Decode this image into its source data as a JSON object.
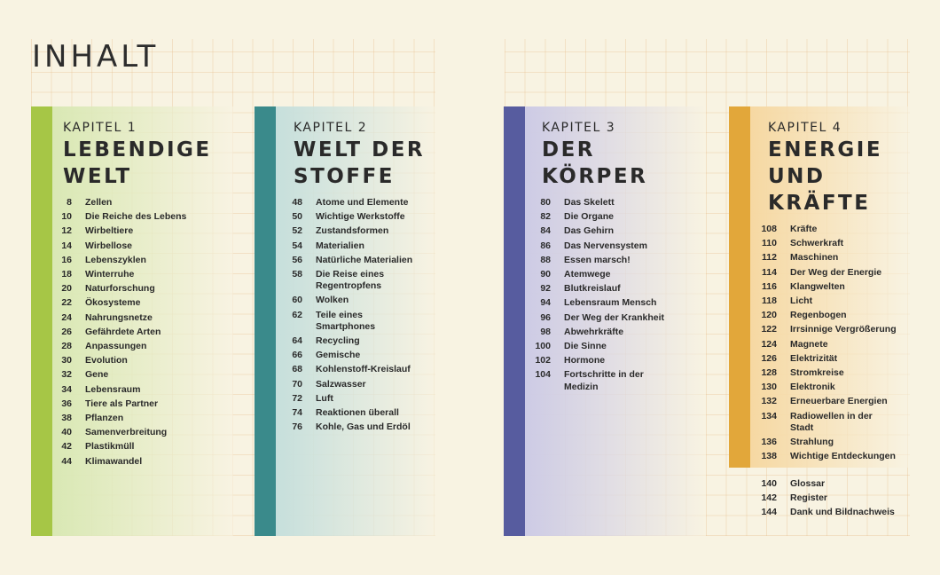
{
  "header": {
    "title": "INHALT"
  },
  "chapters": [
    {
      "label": "KAPITEL 1",
      "title": "LEBENDIGE\nWELT",
      "color": "#a6c646",
      "tint": "#d9e8b4",
      "entries": [
        {
          "page": 8,
          "title": "Zellen"
        },
        {
          "page": 10,
          "title": "Die Reiche des Lebens"
        },
        {
          "page": 12,
          "title": "Wirbeltiere"
        },
        {
          "page": 14,
          "title": "Wirbellose"
        },
        {
          "page": 16,
          "title": "Lebenszyklen"
        },
        {
          "page": 18,
          "title": "Winterruhe"
        },
        {
          "page": 20,
          "title": "Naturforschung"
        },
        {
          "page": 22,
          "title": "Ökosysteme"
        },
        {
          "page": 24,
          "title": "Nahrungsnetze"
        },
        {
          "page": 26,
          "title": "Gefährdete Arten"
        },
        {
          "page": 28,
          "title": "Anpassungen"
        },
        {
          "page": 30,
          "title": "Evolution"
        },
        {
          "page": 32,
          "title": "Gene"
        },
        {
          "page": 34,
          "title": "Lebensraum"
        },
        {
          "page": 36,
          "title": "Tiere als Partner"
        },
        {
          "page": 38,
          "title": "Pflanzen"
        },
        {
          "page": 40,
          "title": "Samenverbreitung"
        },
        {
          "page": 42,
          "title": "Plastikmüll"
        },
        {
          "page": 44,
          "title": "Klimawandel"
        }
      ]
    },
    {
      "label": "KAPITEL 2",
      "title": "WELT DER\nSTOFFE",
      "color": "#3a8a8b",
      "tint": "#c6dfdc",
      "entries": [
        {
          "page": 48,
          "title": "Atome und Elemente"
        },
        {
          "page": 50,
          "title": "Wichtige Werkstoffe"
        },
        {
          "page": 52,
          "title": "Zustandsformen"
        },
        {
          "page": 54,
          "title": "Materialien"
        },
        {
          "page": 56,
          "title": "Natürliche Materialien"
        },
        {
          "page": 58,
          "title": "Die Reise eines\nRegentropfens"
        },
        {
          "page": 60,
          "title": "Wolken"
        },
        {
          "page": 62,
          "title": "Teile eines\nSmartphones"
        },
        {
          "page": 64,
          "title": "Recycling"
        },
        {
          "page": 66,
          "title": "Gemische"
        },
        {
          "page": 68,
          "title": "Kohlenstoff-Kreislauf"
        },
        {
          "page": 70,
          "title": "Salzwasser"
        },
        {
          "page": 72,
          "title": "Luft"
        },
        {
          "page": 74,
          "title": "Reaktionen überall"
        },
        {
          "page": 76,
          "title": "Kohle, Gas und Erdöl"
        }
      ]
    },
    {
      "label": "KAPITEL 3",
      "title": "DER\nKÖRPER",
      "color": "#575c9f",
      "tint": "#cdcbe5",
      "entries": [
        {
          "page": 80,
          "title": "Das Skelett"
        },
        {
          "page": 82,
          "title": "Die Organe"
        },
        {
          "page": 84,
          "title": "Das Gehirn"
        },
        {
          "page": 86,
          "title": "Das Nervensystem"
        },
        {
          "page": 88,
          "title": "Essen marsch!"
        },
        {
          "page": 90,
          "title": "Atemwege"
        },
        {
          "page": 92,
          "title": "Blutkreislauf"
        },
        {
          "page": 94,
          "title": "Lebensraum Mensch"
        },
        {
          "page": 96,
          "title": "Der Weg der Krankheit"
        },
        {
          "page": 98,
          "title": "Abwehrkräfte"
        },
        {
          "page": 100,
          "title": "Die Sinne"
        },
        {
          "page": 102,
          "title": "Hormone"
        },
        {
          "page": 104,
          "title": "Fortschritte in der\nMedizin"
        }
      ]
    },
    {
      "label": "KAPITEL 4",
      "title": "ENERGIE\nUND\nKRÄFTE",
      "color": "#e2a73a",
      "tint": "#f6d8a2",
      "entries": [
        {
          "page": 108,
          "title": "Kräfte"
        },
        {
          "page": 110,
          "title": "Schwerkraft"
        },
        {
          "page": 112,
          "title": "Maschinen"
        },
        {
          "page": 114,
          "title": "Der Weg der Energie"
        },
        {
          "page": 116,
          "title": "Klangwelten"
        },
        {
          "page": 118,
          "title": "Licht"
        },
        {
          "page": 120,
          "title": "Regenbogen"
        },
        {
          "page": 122,
          "title": "Irrsinnige Vergrößerung"
        },
        {
          "page": 124,
          "title": "Magnete"
        },
        {
          "page": 126,
          "title": "Elektrizität"
        },
        {
          "page": 128,
          "title": "Stromkreise"
        },
        {
          "page": 130,
          "title": "Elektronik"
        },
        {
          "page": 132,
          "title": "Erneuerbare Energien"
        },
        {
          "page": 134,
          "title": "Radiowellen in der\nStadt"
        },
        {
          "page": 136,
          "title": "Strahlung"
        },
        {
          "page": 138,
          "title": "Wichtige Entdeckungen"
        }
      ]
    }
  ],
  "back_matter": [
    {
      "page": 140,
      "title": "Glossar"
    },
    {
      "page": 142,
      "title": "Register"
    },
    {
      "page": 144,
      "title": "Dank und Bildnachweis"
    }
  ]
}
